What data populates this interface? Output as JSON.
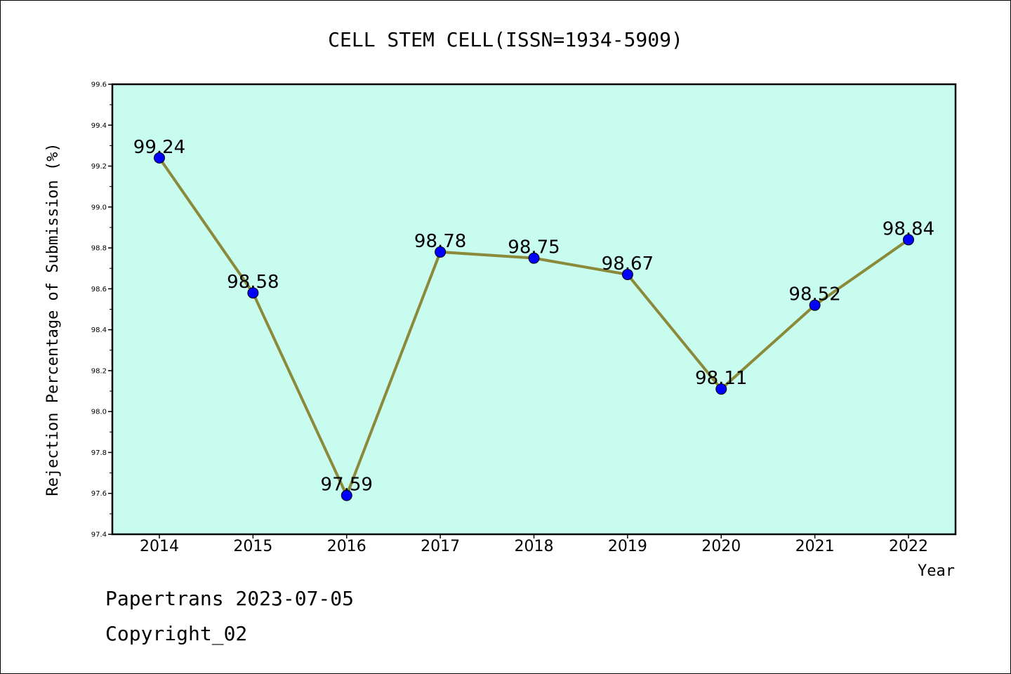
{
  "chart_data": {
    "type": "line",
    "title": "CELL STEM CELL(ISSN=1934-5909)",
    "xlabel": "Year",
    "ylabel": "Rejection Percentage of Submission (%)",
    "categories": [
      "2014",
      "2015",
      "2016",
      "2017",
      "2018",
      "2019",
      "2020",
      "2021",
      "2022"
    ],
    "values": [
      99.24,
      98.58,
      97.59,
      98.78,
      98.75,
      98.67,
      98.11,
      98.52,
      98.84
    ],
    "data_labels": [
      "99.24",
      "98.58",
      "97.59",
      "98.78",
      "98.75",
      "98.67",
      "98.11",
      "98.52",
      "98.84"
    ],
    "ylim": [
      97.4,
      99.6
    ],
    "yticks": [
      "97.4",
      "97.6",
      "97.8",
      "98.0",
      "98.2",
      "98.4",
      "98.6",
      "98.8",
      "99.0",
      "99.2",
      "99.4",
      "99.6"
    ],
    "grid": false,
    "colors": {
      "plot_background": "#c8fcee",
      "line": "#8b8a3a",
      "marker": "#0000ff"
    }
  },
  "footer": {
    "line1": "Papertrans 2023-07-05",
    "line2": "Copyright_02"
  }
}
